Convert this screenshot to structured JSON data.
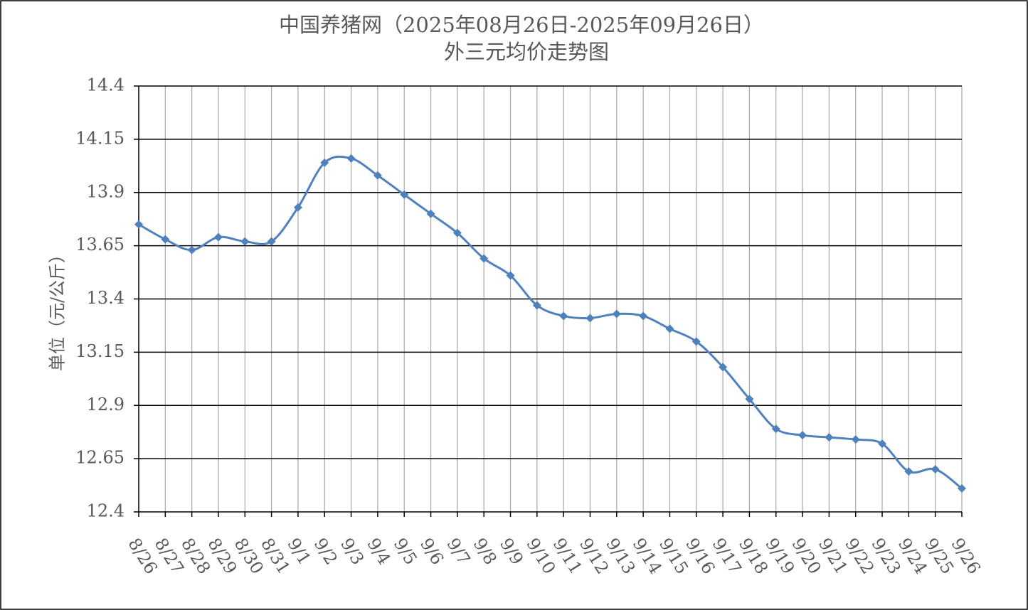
{
  "chart_data": {
    "type": "line",
    "title": "中国养猪网（2025年08月26日-2025年09月26日）",
    "subtitle": "外三元均价走势图",
    "y_label": "单位（元/公斤）",
    "categories": [
      "8/26",
      "8/27",
      "8/28",
      "8/29",
      "8/30",
      "8/31",
      "9/1",
      "9/2",
      "9/3",
      "9/4",
      "9/5",
      "9/6",
      "9/7",
      "9/8",
      "9/9",
      "9/10",
      "9/11",
      "9/12",
      "9/13",
      "9/14",
      "9/15",
      "9/16",
      "9/17",
      "9/18",
      "9/19",
      "9/20",
      "9/21",
      "9/22",
      "9/23",
      "9/24",
      "9/25",
      "9/26"
    ],
    "values": [
      13.75,
      13.68,
      13.63,
      13.69,
      13.67,
      13.67,
      13.83,
      14.04,
      14.06,
      13.98,
      13.89,
      13.8,
      13.71,
      13.59,
      13.51,
      13.37,
      13.32,
      13.31,
      13.33,
      13.32,
      13.26,
      13.2,
      13.08,
      12.93,
      12.79,
      12.76,
      12.75,
      12.74,
      12.72,
      12.59,
      12.6,
      12.51
    ],
    "color": "#4f81bd",
    "ylim": [
      12.4,
      14.4
    ],
    "yticks": [
      12.4,
      12.65,
      12.9,
      13.15,
      13.4,
      13.65,
      13.9,
      14.15,
      14.4
    ],
    "grid": true,
    "smooth": true
  }
}
